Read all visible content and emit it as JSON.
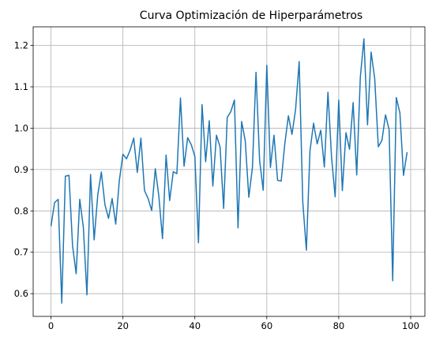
{
  "chart_data": {
    "type": "line",
    "title": "Curva Optimización de Hiperparámetros",
    "xlabel": "",
    "ylabel": "",
    "xlim": [
      -4.95,
      103.95
    ],
    "ylim": [
      0.545,
      1.245
    ],
    "grid": true,
    "x_ticks": [
      0,
      20,
      40,
      60,
      80,
      100
    ],
    "y_ticks": [
      0.6,
      0.7,
      0.8,
      0.9,
      1.0,
      1.1,
      1.2
    ],
    "x_tick_labels": [
      "0",
      "20",
      "40",
      "60",
      "80",
      "100"
    ],
    "y_tick_labels": [
      "0.6",
      "0.7",
      "0.8",
      "0.9",
      "1.0",
      "1.1",
      "1.2"
    ],
    "series": [
      {
        "color": "#1f77b4",
        "x": [
          0,
          1,
          2,
          3,
          4,
          5,
          6,
          7,
          8,
          9,
          10,
          11,
          12,
          13,
          14,
          15,
          16,
          17,
          18,
          19,
          20,
          21,
          22,
          23,
          24,
          25,
          26,
          27,
          28,
          29,
          30,
          31,
          32,
          33,
          34,
          35,
          36,
          37,
          38,
          39,
          40,
          41,
          42,
          43,
          44,
          45,
          46,
          47,
          48,
          49,
          50,
          51,
          52,
          53,
          54,
          55,
          56,
          57,
          58,
          59,
          60,
          61,
          62,
          63,
          64,
          65,
          66,
          67,
          68,
          69,
          70,
          71,
          72,
          73,
          74,
          75,
          76,
          77,
          78,
          79,
          80,
          81,
          82,
          83,
          84,
          85,
          86,
          87,
          88,
          89,
          90,
          91,
          92,
          93,
          94,
          95,
          96,
          97,
          98,
          99
        ],
        "values": [
          0.763,
          0.82,
          0.828,
          0.577,
          0.884,
          0.886,
          0.716,
          0.648,
          0.828,
          0.76,
          0.597,
          0.888,
          0.73,
          0.838,
          0.894,
          0.815,
          0.782,
          0.83,
          0.768,
          0.873,
          0.937,
          0.926,
          0.947,
          0.976,
          0.893,
          0.976,
          0.849,
          0.83,
          0.801,
          0.902,
          0.835,
          0.733,
          0.935,
          0.825,
          0.895,
          0.89,
          1.073,
          0.908,
          0.977,
          0.96,
          0.932,
          0.723,
          1.057,
          0.919,
          1.018,
          0.86,
          0.983,
          0.955,
          0.806,
          1.026,
          1.04,
          1.068,
          0.759,
          1.016,
          0.97,
          0.833,
          0.905,
          1.135,
          0.922,
          0.85,
          1.152,
          0.905,
          0.983,
          0.874,
          0.872,
          0.962,
          1.03,
          0.985,
          1.045,
          1.161,
          0.822,
          0.705,
          0.945,
          1.012,
          0.962,
          0.995,
          0.906,
          1.087,
          0.93,
          0.834,
          1.068,
          0.849,
          0.989,
          0.949,
          1.062,
          0.887,
          1.123,
          1.216,
          1.008,
          1.184,
          1.12,
          0.955,
          0.97,
          1.032,
          0.997,
          0.631,
          1.074,
          1.037,
          0.886,
          0.942
        ]
      }
    ]
  }
}
